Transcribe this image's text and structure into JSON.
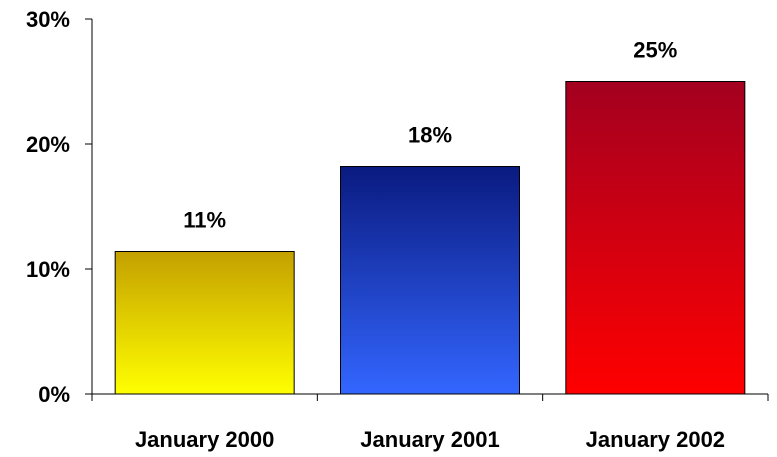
{
  "chart_data": {
    "type": "bar",
    "title": "",
    "xlabel": "",
    "ylabel": "",
    "categories": [
      "January 2000",
      "January 2001",
      "January 2002"
    ],
    "values": [
      11.4,
      18.2,
      25.0
    ],
    "data_labels": [
      "11%",
      "18%",
      "25%"
    ],
    "ylim": [
      0,
      30
    ],
    "yticks": [
      0,
      10,
      20,
      30
    ],
    "ytick_labels": [
      "0%",
      "10%",
      "20%",
      "30%"
    ],
    "grid": false,
    "legend": "none",
    "bar_colors": [
      {
        "top": "#c4a000",
        "bottom": "#ffff00"
      },
      {
        "top": "#0a1a80",
        "bottom": "#3366ff"
      },
      {
        "top": "#a30020",
        "bottom": "#ff0000"
      }
    ],
    "axis_color": "#000000"
  }
}
